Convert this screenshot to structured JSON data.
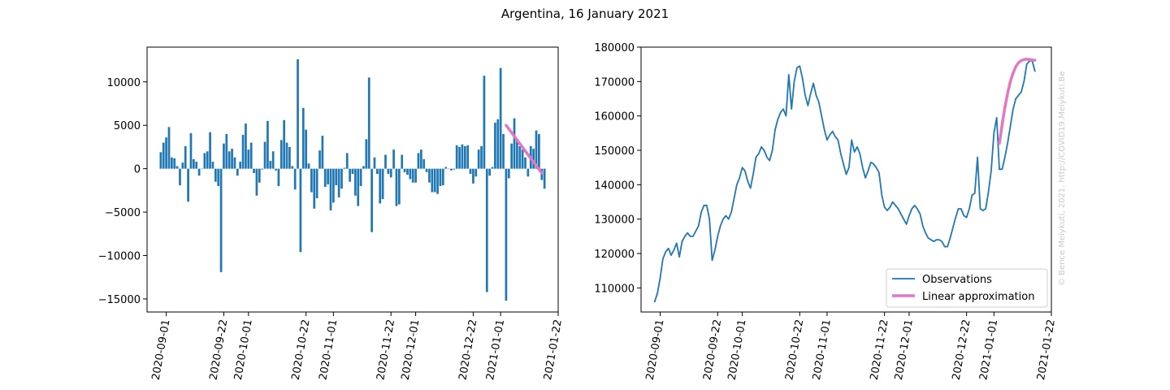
{
  "figure": {
    "title": "Argentina, 16 January 2021",
    "watermark": "© Bence Melykuti, 2021. http://COVID19.Melykuti.Be"
  },
  "colors": {
    "bar": "#1f77b4",
    "observations": "#1f77b4",
    "linear_approx": "#e377c2"
  },
  "chart_data": [
    {
      "type": "bar",
      "title": "",
      "xlabel": "",
      "ylabel": "",
      "x_start": "2020-08-30",
      "x_end": "2021-01-16",
      "xlim": [
        "2020-08-25",
        "2021-01-22"
      ],
      "ylim": [
        -16500,
        14000
      ],
      "grid": false,
      "x_ticks": [
        "2020-09-01",
        "2020-09-22",
        "2020-10-01",
        "2020-10-22",
        "2020-11-01",
        "2020-11-22",
        "2020-12-01",
        "2020-12-22",
        "2021-01-01",
        "2021-01-22"
      ],
      "y_ticks": [
        -15000,
        -10000,
        -5000,
        0,
        5000,
        10000
      ],
      "y_tick_labels": [
        "−15000",
        "−10000",
        "−5000",
        "0",
        "5000",
        "10000"
      ],
      "values": [
        1900,
        3000,
        3600,
        4800,
        1300,
        1200,
        300,
        -1900,
        700,
        2600,
        -3800,
        4100,
        1100,
        800,
        -800,
        0,
        1800,
        2000,
        4200,
        800,
        -1500,
        -2000,
        -11900,
        2900,
        4000,
        2000,
        2300,
        1300,
        -800,
        800,
        3900,
        5200,
        2200,
        3000,
        -500,
        -3100,
        -1600,
        -100,
        3100,
        5500,
        900,
        2000,
        -200,
        -2000,
        3300,
        5600,
        3000,
        2500,
        300,
        -2400,
        12600,
        -9600,
        7000,
        4500,
        600,
        -2700,
        -4600,
        -3400,
        2100,
        3800,
        -2100,
        -1800,
        -4800,
        -3900,
        -1900,
        -3300,
        -2300,
        100,
        1800,
        -1500,
        -600,
        -3100,
        -4300,
        -2000,
        300,
        3400,
        10500,
        -7300,
        1300,
        -600,
        -4000,
        -3500,
        1600,
        -600,
        -1000,
        2200,
        -4300,
        -4100,
        1600,
        -400,
        -700,
        -1200,
        -1600,
        -1600,
        1800,
        2200,
        1100,
        -400,
        -1600,
        -2700,
        -2700,
        -2900,
        -2000,
        -1900,
        200,
        0,
        -200,
        -100,
        2700,
        2500,
        2800,
        2600,
        2700,
        -600,
        -1700,
        -900,
        2200,
        2600,
        10700,
        -14200,
        -800,
        200,
        5300,
        5700,
        11600,
        4000,
        -15200,
        -1100,
        2900,
        5800,
        3400,
        2600,
        2200,
        1300,
        -900,
        2600,
        2300,
        4400,
        4000,
        -1300,
        -2300
      ],
      "series_trend": {
        "name": "Linear approximation",
        "x": [
          "2021-01-03",
          "2021-01-16"
        ],
        "y": [
          5000,
          -500
        ]
      }
    },
    {
      "type": "line",
      "title": "",
      "xlabel": "",
      "ylabel": "",
      "xlim": [
        "2020-08-25",
        "2021-01-22"
      ],
      "ylim": [
        103000,
        180000
      ],
      "grid": false,
      "legend_position": "lower-right",
      "x_ticks": [
        "2020-09-01",
        "2020-09-22",
        "2020-10-01",
        "2020-10-22",
        "2020-11-01",
        "2020-11-22",
        "2020-12-01",
        "2020-12-22",
        "2021-01-01",
        "2021-01-22"
      ],
      "y_ticks": [
        110000,
        120000,
        130000,
        140000,
        150000,
        160000,
        170000,
        180000
      ],
      "series": [
        {
          "name": "Observations",
          "x_start": "2020-08-30",
          "x_end": "2021-01-16",
          "values": [
            106000,
            108500,
            113000,
            118500,
            120500,
            121500,
            119500,
            121000,
            123000,
            119000,
            123500,
            125000,
            126000,
            125000,
            125000,
            126500,
            128000,
            132000,
            134000,
            134000,
            130000,
            118000,
            121000,
            125000,
            128000,
            130000,
            131000,
            130000,
            132000,
            136000,
            140000,
            142000,
            145000,
            144000,
            141000,
            139000,
            143000,
            148000,
            149000,
            151000,
            150000,
            148000,
            147000,
            150000,
            156000,
            159000,
            161000,
            162000,
            160000,
            172000,
            162000,
            170000,
            174000,
            174500,
            171000,
            166000,
            163000,
            166500,
            169500,
            166000,
            164000,
            160000,
            156000,
            153000,
            154500,
            155500,
            154000,
            153000,
            149000,
            146000,
            143000,
            145000,
            153000,
            149500,
            151000,
            149000,
            145000,
            142000,
            144000,
            146500,
            146000,
            145000,
            143500,
            137000,
            133500,
            132500,
            133500,
            135000,
            134000,
            133000,
            131500,
            130000,
            128500,
            131000,
            133000,
            134000,
            133000,
            131500,
            128000,
            126000,
            124500,
            124000,
            123500,
            124000,
            124000,
            123500,
            122000,
            122000,
            124500,
            127500,
            130500,
            133000,
            133000,
            131000,
            130500,
            133000,
            137000,
            137500,
            148000,
            133000,
            132500,
            133000,
            138000,
            144000,
            155000,
            159500,
            144500,
            144500,
            148000,
            152000,
            157000,
            162000,
            165000,
            166000,
            167000,
            170000,
            175000,
            176000,
            176000,
            173000
          ]
        },
        {
          "name": "Linear approximation",
          "x_start": "2021-01-03",
          "x_end": "2021-01-16",
          "values": [
            152000,
            157500,
            162500,
            166500,
            170000,
            172500,
            174300,
            175500,
            176100,
            176400,
            176500,
            176400,
            176300,
            176200
          ]
        }
      ]
    }
  ]
}
